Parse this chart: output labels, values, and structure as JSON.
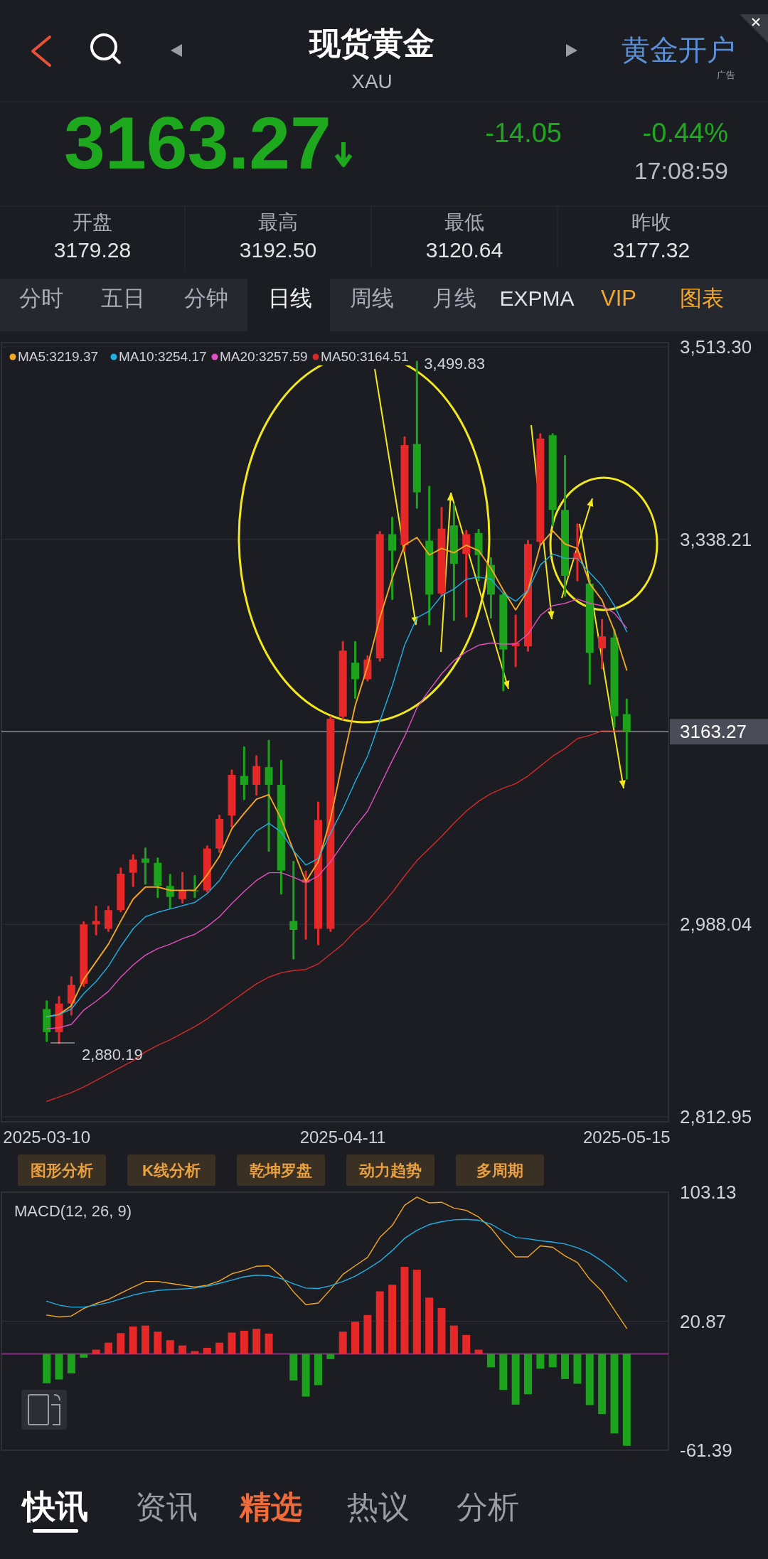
{
  "chart_data": [
    {
      "type": "candlestick",
      "title": "现货黄金",
      "subtitle": "XAU",
      "categories": [
        "2025-03-10",
        null,
        null,
        null,
        null,
        null,
        null,
        null,
        null,
        null,
        null,
        null,
        null,
        null,
        null,
        null,
        null,
        null,
        null,
        null,
        null,
        null,
        null,
        null,
        "2025-04-11",
        null,
        null,
        null,
        null,
        null,
        null,
        null,
        null,
        null,
        null,
        null,
        null,
        null,
        null,
        null,
        null,
        null,
        null,
        null,
        null,
        null,
        null,
        "2025-05-15"
      ],
      "ohlc": [
        [
          2911,
          2918,
          2882,
          2890
        ],
        [
          2890,
          2922,
          2880.19,
          2916
        ],
        [
          2916,
          2940,
          2906,
          2933
        ],
        [
          2934,
          2990,
          2932,
          2988
        ],
        [
          2988,
          3004,
          2979,
          2991
        ],
        [
          2984,
          3004,
          2982,
          3001
        ],
        [
          3001,
          3039,
          3000,
          3034
        ],
        [
          3035,
          3051,
          3023,
          3047
        ],
        [
          3048,
          3057,
          3025,
          3044
        ],
        [
          3044,
          3048,
          3013,
          3023
        ],
        [
          3023,
          3033,
          3003,
          3013
        ],
        [
          3011,
          3035,
          3008,
          3019
        ],
        [
          3019,
          3032,
          3013,
          3018
        ],
        [
          3019,
          3059,
          3018,
          3057
        ],
        [
          3057,
          3087,
          3054,
          3084
        ],
        [
          3087,
          3128,
          3077,
          3124
        ],
        [
          3123,
          3149,
          3102,
          3115
        ],
        [
          3115,
          3141,
          3106,
          3132
        ],
        [
          3131,
          3155,
          3055,
          3115
        ],
        [
          3115,
          3137,
          3016,
          3037
        ],
        [
          2991,
          3045,
          2957,
          2983
        ],
        [
          3026,
          3036,
          2975,
          3029
        ],
        [
          2984,
          3099,
          2970,
          3083
        ],
        [
          2984,
          3177,
          2982,
          3175
        ],
        [
          3177,
          3245,
          3175,
          3237
        ],
        [
          3226,
          3245,
          3194,
          3211
        ],
        [
          3211,
          3232,
          3210,
          3229
        ],
        [
          3230,
          3345,
          3228,
          3343
        ],
        [
          3343,
          3358,
          3284,
          3328
        ],
        [
          3333,
          3431,
          3328,
          3424
        ],
        [
          3425,
          3499.83,
          3367,
          3381
        ],
        [
          3337,
          3386,
          3261,
          3288
        ],
        [
          3289,
          3367,
          3287,
          3348
        ],
        [
          3351,
          3370,
          3265,
          3316
        ],
        [
          3325,
          3346,
          3268,
          3343
        ],
        [
          3344,
          3347,
          3301,
          3324
        ],
        [
          3315,
          3321,
          3267,
          3288
        ],
        [
          3288,
          3289,
          3201,
          3238
        ],
        [
          3241,
          3269,
          3223,
          3244
        ],
        [
          3241,
          3337,
          3237,
          3334
        ],
        [
          3336,
          3434,
          3334,
          3430
        ],
        [
          3433,
          3434,
          3351,
          3365
        ],
        [
          3365,
          3414,
          3287,
          3305
        ],
        [
          3320,
          3352,
          3301,
          3326
        ],
        [
          3298,
          3301,
          3207,
          3235
        ],
        [
          3239,
          3265,
          3221,
          3250
        ],
        [
          3249,
          3256,
          3168,
          3177.32
        ],
        [
          3179.28,
          3192.5,
          3120.64,
          3163.27
        ]
      ],
      "colors": [
        "#1ca21c",
        "#e62828",
        "#e62828",
        "#e62828",
        "#e62828",
        "#e62828",
        "#e62828",
        "#e62828",
        "#1ca21c",
        "#1ca21c",
        "#1ca21c",
        "#e62828",
        "#1ca21c",
        "#e62828",
        "#e62828",
        "#e62828",
        "#1ca21c",
        "#e62828",
        "#1ca21c",
        "#1ca21c",
        "#1ca21c",
        "#e62828",
        "#e62828",
        "#e62828",
        "#e62828",
        "#1ca21c",
        "#e62828",
        "#e62828",
        "#1ca21c",
        "#e62828",
        "#1ca21c",
        "#1ca21c",
        "#e62828",
        "#1ca21c",
        "#e62828",
        "#1ca21c",
        "#1ca21c",
        "#1ca21c",
        "#e62828",
        "#e62828",
        "#e62828",
        "#1ca21c",
        "#1ca21c",
        "#e62828",
        "#1ca21c",
        "#e62828",
        "#1ca21c",
        "#1ca21c"
      ],
      "series": [
        {
          "type": "line",
          "name": "MA5:3219.37",
          "color": "#f5a623",
          "values": [
            2904,
            2906,
            2914,
            2938,
            2954,
            2970,
            2991,
            3011,
            3022,
            3022,
            3019,
            3019,
            3019,
            3033,
            3050,
            3075,
            3089,
            3102,
            3106,
            3084,
            3055,
            3027,
            3045,
            3084,
            3137,
            3187,
            3223,
            3267,
            3303,
            3333,
            3340,
            3324,
            3330,
            3326,
            3333,
            3328,
            3312,
            3292,
            3274,
            3292,
            3333,
            3346,
            3334,
            3330,
            3298,
            3283,
            3255,
            3219.37
          ]
        },
        {
          "type": "line",
          "name": "MA10:3254.17",
          "color": "#1fb0e6",
          "values": [
            2904,
            2906,
            2911,
            2925,
            2936,
            2950,
            2968,
            2984,
            2995,
            2999,
            3002,
            3005,
            3008,
            3016,
            3028,
            3045,
            3059,
            3073,
            3080,
            3072,
            3055,
            3042,
            3048,
            3071,
            3093,
            3118,
            3141,
            3173,
            3205,
            3242,
            3267,
            3273,
            3287,
            3293,
            3302,
            3304,
            3302,
            3289,
            3282,
            3292,
            3315,
            3325,
            3321,
            3321,
            3308,
            3296,
            3278,
            3254.17
          ]
        },
        {
          "type": "line",
          "name": "MA20:3257.59",
          "color": "#e24fc2",
          "values": [
            2893,
            2894,
            2897,
            2910,
            2918,
            2927,
            2940,
            2951,
            2960,
            2966,
            2970,
            2975,
            2979,
            2986,
            2995,
            3007,
            3018,
            3028,
            3035,
            3035,
            3031,
            3026,
            3032,
            3045,
            3061,
            3077,
            3091,
            3114,
            3137,
            3159,
            3185,
            3201,
            3216,
            3228,
            3236,
            3242,
            3244,
            3243,
            3243,
            3252,
            3269,
            3278,
            3280,
            3284,
            3280,
            3278,
            3271,
            3257.59
          ]
        },
        {
          "type": "line",
          "name": "MA50:3164.51",
          "color": "#d42a2a",
          "values": [
            2827,
            2831,
            2835,
            2840,
            2846,
            2852,
            2858,
            2864,
            2872,
            2878,
            2883,
            2889,
            2895,
            2902,
            2910,
            2918,
            2926,
            2934,
            2940,
            2944,
            2946,
            2947,
            2952,
            2961,
            2970,
            2982,
            2991,
            3004,
            3017,
            3032,
            3046,
            3057,
            3068,
            3080,
            3091,
            3100,
            3107,
            3112,
            3116,
            3123,
            3132,
            3141,
            3148,
            3157,
            3160,
            3164,
            3164,
            3164.51
          ]
        }
      ],
      "ylim": [
        2812.95,
        3513.3
      ],
      "yticks": [
        {
          "value": 3513.3,
          "label": "3,513.30"
        },
        {
          "value": 3338.21,
          "label": "3,338.21"
        },
        {
          "value": 2988.04,
          "label": "2,988.04"
        },
        {
          "value": 2812.95,
          "label": "2,812.95"
        }
      ],
      "grid": "y",
      "legend": "top left",
      "ref_lines": [
        {
          "axis": "y",
          "value": 3163.27,
          "label": "3163.27",
          "color": "#8a8d96"
        }
      ],
      "annotations": [
        "3,499.83",
        "2,880.19",
        "3163.27",
        "-14.05",
        "-0.44%",
        "17:08:59",
        "开盘",
        "3179.28",
        "最高",
        "3192.50",
        "最低",
        "3120.64",
        "昨收",
        "3177.32",
        "分时",
        "五日",
        "分钟",
        "日线",
        "周线",
        "月线",
        "EXPMA",
        "VIP",
        "图表",
        "黄金开户",
        "广告",
        "图形分析",
        "K线分析",
        "乾坤罗盘",
        "动力趋势",
        "多周期",
        "快讯",
        "资讯",
        "精选",
        "热议",
        "分析"
      ]
    },
    {
      "type": "bar",
      "title": "MACD(12, 26, 9)",
      "categories": [
        null,
        null,
        null,
        null,
        null,
        null,
        null,
        null,
        null,
        null,
        null,
        null,
        null,
        null,
        null,
        null,
        null,
        null,
        null,
        null,
        null,
        null,
        null,
        null,
        null,
        null,
        null,
        null,
        null,
        null,
        null,
        null,
        null,
        null,
        null,
        null,
        null,
        null,
        null,
        null,
        null,
        null,
        null,
        null,
        null,
        null,
        null,
        null
      ],
      "series": [
        {
          "type": "bar",
          "colors": [
            "#1ca21c",
            "#1ca21c",
            "#1ca21c",
            "#1ca21c",
            "#e62828",
            "#e62828",
            "#e62828",
            "#e62828",
            "#e62828",
            "#e62828",
            "#e62828",
            "#e62828",
            "#e62828",
            "#e62828",
            "#e62828",
            "#e62828",
            "#e62828",
            "#e62828",
            "#e62828",
            "#e62828",
            "#1ca21c",
            "#1ca21c",
            "#1ca21c",
            "#1ca21c",
            "#e62828",
            "#e62828",
            "#e62828",
            "#e62828",
            "#e62828",
            "#e62828",
            "#e62828",
            "#e62828",
            "#e62828",
            "#e62828",
            "#e62828",
            "#e62828",
            "#1ca21c",
            "#1ca21c",
            "#1ca21c",
            "#1ca21c",
            "#1ca21c",
            "#1ca21c",
            "#1ca21c",
            "#1ca21c",
            "#1ca21c",
            "#1ca21c",
            "#1ca21c",
            "#1ca21c"
          ],
          "values": [
            -18.7,
            -16.3,
            -12.4,
            -2.4,
            2.7,
            7.2,
            13.3,
            17.5,
            18.1,
            14.2,
            8.8,
            5.4,
            1.8,
            3.9,
            7.2,
            13.6,
            14.8,
            16,
            13,
            0,
            -16.9,
            -27.2,
            -19.9,
            -3.3,
            14.2,
            20.5,
            24.8,
            39.9,
            44.1,
            55.5,
            53.7,
            35.9,
            29.3,
            18.1,
            12.1,
            2.7,
            -8.5,
            -22.9,
            -32.3,
            -25.7,
            -9.4,
            -8.5,
            -16,
            -19,
            -32.6,
            -38.3,
            -50.7,
            -58.6
          ]
        },
        {
          "type": "line",
          "color": "#f5a623",
          "values": [
            24.8,
            23.6,
            24.2,
            29.0,
            32.1,
            34.8,
            38.7,
            42.6,
            46.2,
            46.2,
            45.0,
            43.8,
            42.6,
            43.8,
            46.5,
            51.1,
            53.2,
            55.9,
            56.2,
            49.6,
            39.6,
            31.4,
            32.4,
            41.1,
            50.7,
            56.2,
            61.6,
            74.3,
            81.9,
            94.8,
            100.0,
            96.3,
            96.7,
            93.0,
            91.5,
            87.3,
            80.3,
            70.4,
            61.9,
            61.9,
            68.9,
            68.0,
            62.5,
            58.3,
            47.7,
            39.9,
            28.1,
            16.3
          ]
        },
        {
          "type": "line",
          "color": "#1fb0e6",
          "values": [
            33.6,
            31.1,
            29.9,
            29.9,
            31.1,
            32.7,
            35.1,
            37.5,
            39.3,
            40.5,
            41.1,
            41.4,
            42.0,
            43.2,
            45.0,
            47.1,
            49.2,
            50.2,
            49.9,
            48.0,
            44.7,
            42.0,
            41.7,
            43.5,
            46.2,
            49.6,
            54.1,
            59.2,
            65.9,
            73.7,
            78.8,
            82.5,
            84.3,
            85.5,
            85.8,
            85.2,
            82.8,
            78.2,
            74.3,
            73.4,
            72.2,
            71.3,
            70.1,
            67.7,
            64.3,
            59.2,
            53.2,
            46.2
          ]
        }
      ],
      "ylim": [
        -61.39,
        103.13
      ],
      "yticks": [
        103.13,
        20.87,
        -61.39
      ],
      "grid": "y",
      "tick_labels": "y",
      "ref_lines": [
        {
          "axis": "y",
          "value": 0,
          "color": "#9b3f9b"
        }
      ]
    }
  ]
}
